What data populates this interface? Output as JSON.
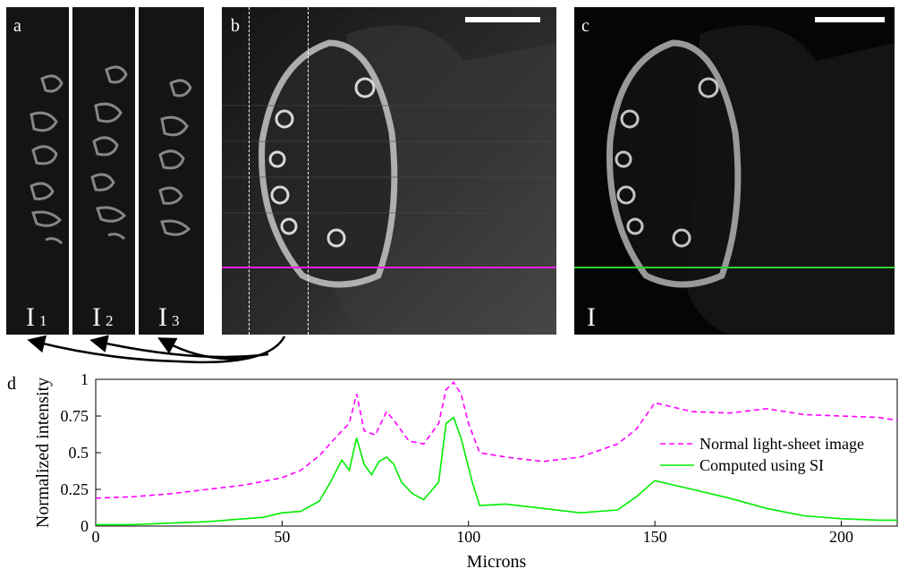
{
  "panel_a": {
    "letter": "a",
    "frames": [
      {
        "symbol": "I",
        "index": "1"
      },
      {
        "symbol": "I",
        "index": "2"
      },
      {
        "symbol": "I",
        "index": "3"
      }
    ]
  },
  "panel_b": {
    "letter": "b",
    "line_color": "#e020e0"
  },
  "panel_c": {
    "letter": "c",
    "label": "I",
    "line_color": "#30d030"
  },
  "panel_d": {
    "letter": "d"
  },
  "chart_data": {
    "type": "line",
    "xlabel": "Microns",
    "ylabel": "Normalized  intensity",
    "xlim": [
      0,
      215
    ],
    "ylim": [
      0,
      1
    ],
    "x_ticks": [
      0,
      50,
      100,
      150,
      200
    ],
    "y_ticks": [
      0,
      0.25,
      0.5,
      0.75,
      1
    ],
    "y_tick_labels": [
      "0",
      "0.25",
      "0.5",
      "0.75",
      "1"
    ],
    "legend_position": "right",
    "series": [
      {
        "name": "Normal light-sheet image",
        "color": "#ff00ff",
        "style": "dashed",
        "x": [
          0,
          10,
          20,
          30,
          40,
          50,
          55,
          60,
          65,
          68,
          70,
          72,
          75,
          78,
          80,
          84,
          88,
          92,
          94,
          96,
          98,
          100,
          103,
          110,
          120,
          130,
          140,
          145,
          150,
          155,
          160,
          170,
          180,
          190,
          200,
          210,
          215
        ],
        "y": [
          0.19,
          0.2,
          0.22,
          0.25,
          0.28,
          0.33,
          0.38,
          0.48,
          0.62,
          0.7,
          0.9,
          0.65,
          0.62,
          0.78,
          0.72,
          0.58,
          0.56,
          0.7,
          0.93,
          0.98,
          0.9,
          0.7,
          0.5,
          0.47,
          0.44,
          0.47,
          0.56,
          0.66,
          0.84,
          0.81,
          0.78,
          0.77,
          0.8,
          0.76,
          0.75,
          0.74,
          0.72
        ]
      },
      {
        "name": "Computed using SI",
        "color": "#00ee00",
        "style": "solid",
        "x": [
          0,
          10,
          20,
          30,
          40,
          45,
          50,
          55,
          60,
          63,
          66,
          68,
          70,
          72,
          74,
          76,
          78,
          80,
          82,
          85,
          88,
          92,
          94,
          96,
          98,
          101,
          103,
          110,
          120,
          130,
          140,
          145,
          150,
          155,
          160,
          170,
          180,
          190,
          200,
          210,
          215
        ],
        "y": [
          0.01,
          0.01,
          0.02,
          0.03,
          0.05,
          0.06,
          0.09,
          0.1,
          0.17,
          0.3,
          0.45,
          0.38,
          0.6,
          0.42,
          0.35,
          0.44,
          0.47,
          0.42,
          0.3,
          0.22,
          0.18,
          0.3,
          0.7,
          0.74,
          0.6,
          0.3,
          0.14,
          0.15,
          0.12,
          0.09,
          0.11,
          0.2,
          0.31,
          0.28,
          0.25,
          0.19,
          0.12,
          0.07,
          0.05,
          0.04,
          0.04
        ]
      }
    ]
  }
}
